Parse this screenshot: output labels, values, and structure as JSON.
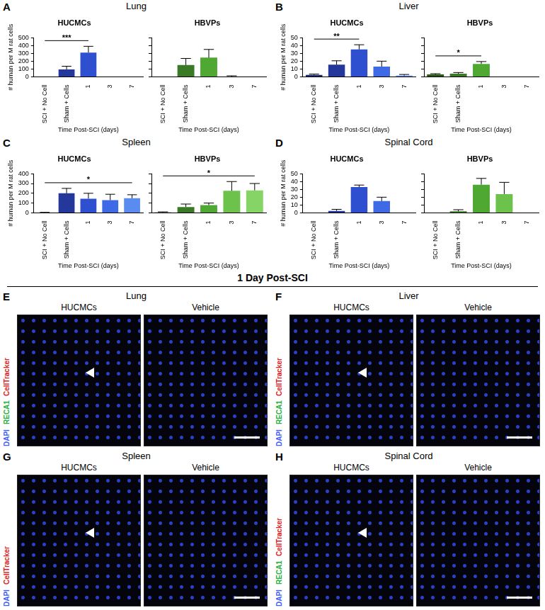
{
  "chart_data": [
    {
      "type": "bar",
      "title": "HUCMCs",
      "y_label": "# human per M rat cells",
      "x_label": "Time Post-SCI (days)",
      "categories": [
        "SCI + No Cell",
        "Sham + Cells",
        "1",
        "3",
        "7"
      ],
      "values": [
        0,
        95,
        310,
        0,
        0
      ],
      "errors": [
        0,
        40,
        80,
        0,
        0
      ],
      "colors": [
        "#1b2a6b",
        "#23389a",
        "#2f4fd1",
        "#3e6ae6",
        "#5a8cf0"
      ],
      "ylim": [
        0,
        500
      ],
      "yticks": [
        0,
        100,
        200,
        300,
        400,
        500
      ],
      "grid": false,
      "annotations": [
        {
          "text": "***",
          "from": "SCI + No Cell",
          "to": "1"
        }
      ]
    },
    {
      "type": "bar",
      "title": "HBVPs",
      "x_label": "Time Post-SCI (days)",
      "categories": [
        "SCI + No Cell",
        "Sham + Cells",
        "1",
        "3",
        "7"
      ],
      "values": [
        0,
        150,
        245,
        5,
        0
      ],
      "errors": [
        0,
        85,
        105,
        8,
        0
      ],
      "colors": [
        "#2d5a1b",
        "#3a7a26",
        "#4fa832",
        "#6cc24a",
        "#86d466"
      ],
      "ylim": [
        0,
        500
      ],
      "yticks": [
        0,
        100,
        200,
        300,
        400,
        500
      ],
      "grid": false,
      "tick_labels": "x"
    },
    {
      "type": "bar",
      "title": "HUCMCs",
      "y_label": "# human per M rat cells",
      "x_label": "Time Post-SCI (days)",
      "categories": [
        "SCI + No Cell",
        "Sham + Cells",
        "1",
        "3",
        "7"
      ],
      "values": [
        2.5,
        15.5,
        35,
        13,
        1.5
      ],
      "errors": [
        1,
        5,
        6,
        7,
        1.5
      ],
      "colors": [
        "#1b2a6b",
        "#23389a",
        "#2f4fd1",
        "#3e6ae6",
        "#5a8cf0"
      ],
      "ylim": [
        0,
        50
      ],
      "yticks": [
        0,
        10,
        20,
        30,
        40,
        50
      ],
      "grid": false,
      "annotations": [
        {
          "text": "**",
          "from": "SCI + No Cell",
          "to": "1"
        }
      ]
    },
    {
      "type": "bar",
      "title": "HBVPs",
      "x_label": "Time Post-SCI (days)",
      "categories": [
        "SCI + No Cell",
        "Sham + Cells",
        "1",
        "3",
        "7"
      ],
      "values": [
        3,
        4,
        16.5,
        0,
        0
      ],
      "errors": [
        1,
        1.5,
        3,
        0,
        0
      ],
      "colors": [
        "#2d5a1b",
        "#3a7a26",
        "#4fa832",
        "#6cc24a",
        "#86d466"
      ],
      "ylim": [
        0,
        50
      ],
      "yticks": [
        0,
        10,
        20,
        30,
        40,
        50
      ],
      "grid": false,
      "tick_labels": "x",
      "annotations": [
        {
          "text": "*",
          "from": "SCI + No Cell",
          "to": "1"
        }
      ]
    },
    {
      "type": "bar",
      "title": "HUCMCs",
      "y_label": "# human per M rat cells",
      "x_label": "Time Post-SCI (days)",
      "categories": [
        "SCI + No Cell",
        "Sham + Cells",
        "1",
        "3",
        "7"
      ],
      "values": [
        3,
        200,
        145,
        130,
        150
      ],
      "errors": [
        2,
        50,
        55,
        60,
        35
      ],
      "colors": [
        "#1b2a6b",
        "#23389a",
        "#2f4fd1",
        "#3e6ae6",
        "#5a8cf0"
      ],
      "ylim": [
        0,
        400
      ],
      "yticks": [
        0,
        100,
        200,
        300,
        400
      ],
      "grid": false,
      "annotations": [
        {
          "text": "*",
          "from": "SCI + No Cell",
          "to": "7"
        }
      ]
    },
    {
      "type": "bar",
      "title": "HBVPs",
      "x_label": "Time Post-SCI (days)",
      "categories": [
        "SCI + No Cell",
        "Sham + Cells",
        "1",
        "3",
        "7"
      ],
      "values": [
        5,
        60,
        80,
        225,
        230
      ],
      "errors": [
        5,
        30,
        20,
        95,
        70
      ],
      "colors": [
        "#2d5a1b",
        "#3a7a26",
        "#4fa832",
        "#6cc24a",
        "#86d466"
      ],
      "ylim": [
        0,
        400
      ],
      "yticks": [
        0,
        100,
        200,
        300,
        400
      ],
      "grid": false,
      "tick_labels": "x",
      "annotations": [
        {
          "text": "*",
          "from": "SCI + No Cell",
          "to": "7"
        }
      ]
    },
    {
      "type": "bar",
      "title": "HUCMCs",
      "y_label": "# human per M rat cells",
      "x_label": "Time Post-SCI (days)",
      "categories": [
        "SCI + No Cell",
        "Sham + Cells",
        "1",
        "3",
        "7"
      ],
      "values": [
        0,
        2.5,
        33,
        15,
        0
      ],
      "errors": [
        0,
        2,
        2.5,
        5,
        0
      ],
      "colors": [
        "#1b2a6b",
        "#23389a",
        "#2f4fd1",
        "#3e6ae6",
        "#5a8cf0"
      ],
      "ylim": [
        0,
        50
      ],
      "yticks": [
        0,
        10,
        20,
        30,
        40,
        50
      ],
      "grid": false
    },
    {
      "type": "bar",
      "title": "HBVPs",
      "x_label": "Time Post-SCI (days)",
      "categories": [
        "SCI + No Cell",
        "Sham + Cells",
        "1",
        "3",
        "7"
      ],
      "values": [
        0,
        2,
        36,
        24,
        0
      ],
      "errors": [
        0,
        2,
        8,
        15,
        0
      ],
      "colors": [
        "#2d5a1b",
        "#3a7a26",
        "#4fa832",
        "#6cc24a",
        "#86d466"
      ],
      "ylim": [
        0,
        50
      ],
      "yticks": [
        0,
        10,
        20,
        30,
        40,
        50
      ],
      "grid": false,
      "tick_labels": "x"
    }
  ],
  "chart_panels": [
    {
      "letter": "A",
      "title": "Lung"
    },
    {
      "letter": "B",
      "title": "Liver"
    },
    {
      "letter": "C",
      "title": "Spleen"
    },
    {
      "letter": "D",
      "title": "Spinal Cord"
    }
  ],
  "image_section": {
    "title": "1 Day Post-SCI",
    "panels": [
      {
        "letter": "E",
        "title": "Lung",
        "images": [
          "HUCMCs",
          "Vehicle"
        ],
        "stains": [
          {
            "text": "DAPI",
            "color": "#3d5cff"
          },
          {
            "text": "RECA1",
            "color": "#22b33a"
          },
          {
            "text": "CellTracker",
            "color": "#e02020"
          }
        ]
      },
      {
        "letter": "F",
        "title": "Liver",
        "images": [
          "HUCMCs",
          "Vehicle"
        ],
        "stains": [
          {
            "text": "DAPI",
            "color": "#3d5cff"
          },
          {
            "text": "RECA1",
            "color": "#22b33a"
          },
          {
            "text": "CellTracker",
            "color": "#e02020"
          }
        ]
      },
      {
        "letter": "G",
        "title": "Spleen",
        "images": [
          "HUCMCs",
          "Vehicle"
        ],
        "stains": [
          {
            "text": "DAPI",
            "color": "#3d5cff"
          },
          {
            "text": "CellTracker",
            "color": "#e02020"
          }
        ]
      },
      {
        "letter": "H",
        "title": "Spinal Cord",
        "images": [
          "HUCMCs",
          "Vehicle"
        ],
        "stains": [
          {
            "text": "DAPI",
            "color": "#3d5cff"
          },
          {
            "text": "RECA1",
            "color": "#22b33a"
          },
          {
            "text": "CellTracker",
            "color": "#e02020"
          }
        ]
      }
    ]
  }
}
